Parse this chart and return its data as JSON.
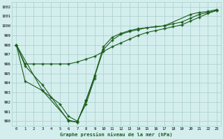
{
  "title": "Graphe pression niveau de la mer (hPa)",
  "ylim": [
    989.5,
    1002.5
  ],
  "xlim": [
    -0.5,
    23.5
  ],
  "yticks": [
    990,
    991,
    992,
    993,
    994,
    995,
    996,
    997,
    998,
    999,
    1000,
    1001,
    1002
  ],
  "xticks": [
    0,
    1,
    2,
    3,
    4,
    5,
    6,
    7,
    8,
    9,
    10,
    11,
    12,
    13,
    14,
    15,
    16,
    17,
    18,
    19,
    20,
    21,
    22,
    23
  ],
  "bg_color": "#d4eeee",
  "grid_color": "#a8cccc",
  "line_color": "#1a5c1a",
  "lines": [
    {
      "x": [
        0,
        1,
        3,
        6,
        7,
        8,
        9,
        10,
        11,
        12,
        13,
        14,
        17,
        20,
        21,
        22,
        23
      ],
      "y": [
        998.0,
        995.8,
        993.8,
        990.0,
        989.9,
        992.2,
        994.8,
        997.8,
        998.8,
        999.2,
        999.5,
        999.7,
        1000.0,
        1001.2,
        1001.4,
        1001.5,
        1001.7
      ]
    },
    {
      "x": [
        0,
        1,
        2,
        3,
        4,
        5,
        6,
        7,
        8,
        9,
        10,
        11,
        12,
        13,
        14,
        15,
        16,
        17,
        18,
        19,
        20,
        21,
        22,
        23
      ],
      "y": [
        998.0,
        996.0,
        996.0,
        996.0,
        996.0,
        996.0,
        996.0,
        996.2,
        996.5,
        996.8,
        997.3,
        997.8,
        998.2,
        998.6,
        999.0,
        999.3,
        999.5,
        999.7,
        999.9,
        1000.1,
        1000.5,
        1000.9,
        1001.3,
        1001.6
      ]
    },
    {
      "x": [
        0,
        3,
        6,
        7,
        8,
        9,
        10,
        11,
        12,
        13,
        14,
        15,
        16,
        17,
        18,
        19,
        20,
        21,
        22,
        23
      ],
      "y": [
        998.0,
        993.2,
        990.1,
        989.9,
        992.1,
        994.7,
        997.5,
        998.5,
        999.1,
        999.4,
        999.6,
        999.8,
        999.9,
        1000.0,
        1000.2,
        1000.4,
        1000.8,
        1001.2,
        1001.4,
        1001.6
      ]
    },
    {
      "x": [
        0,
        1,
        3,
        4,
        5,
        6,
        7,
        8,
        9
      ],
      "y": [
        998.0,
        994.2,
        993.2,
        992.5,
        991.8,
        990.5,
        990.0,
        991.8,
        994.5
      ]
    }
  ]
}
